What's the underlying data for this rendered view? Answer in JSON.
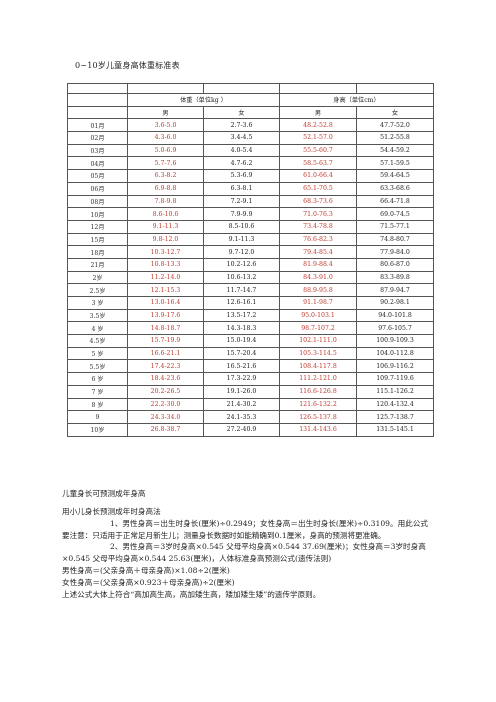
{
  "title": "0~10岁儿童身高体重标准表",
  "table": {
    "group_headers": [
      "体重（单位kg ）",
      "身高（单位cm）"
    ],
    "sub_headers": [
      "男",
      "女",
      "男",
      "女"
    ],
    "rows": [
      {
        "age": "01月",
        "wb": "3.6-5.0",
        "wg": "2.7-3.6",
        "hb": "48.2-52.8",
        "hg": "47.7-52.0"
      },
      {
        "age": "02月",
        "wb": "4.3-6.0",
        "wg": "3.4-4.5",
        "hb": "52.1-57.0",
        "hg": "51.2-55.8"
      },
      {
        "age": "03月",
        "wb": "5.0-6.9",
        "wg": "4.0-5.4",
        "hb": "55.5-60.7",
        "hg": "54.4-59.2"
      },
      {
        "age": "04月",
        "wb": "5.7-7.6",
        "wg": "4.7-6.2",
        "hb": "58.5-63.7",
        "hg": "57.1-59.5"
      },
      {
        "age": "05月",
        "wb": "6.3-8.2",
        "wg": "5.3-6.9",
        "hb": "61.0-66.4",
        "hg": "59.4-64.5"
      },
      {
        "age": "06月",
        "wb": "6.9-8.8",
        "wg": "6.3-8.1",
        "hb": "65.1-70.5",
        "hg": "63.3-68.6"
      },
      {
        "age": "08月",
        "wb": "7.8-9.8",
        "wg": "7.2-9.1",
        "hb": "68.3-73.6",
        "hg": "66.4-71.8"
      },
      {
        "age": "10月",
        "wb": "8.6-10.6",
        "wg": "7.9-9.9",
        "hb": "71.0-76.3",
        "hg": "69.0-74.5"
      },
      {
        "age": "12月",
        "wb": "9.1-11.3",
        "wg": "8.5-10.6",
        "hb": "73.4-78.8",
        "hg": "71.5-77.1"
      },
      {
        "age": "15月",
        "wb": "9.8-12.0",
        "wg": "9.1-11.3",
        "hb": "76.6-82.3",
        "hg": "74.8-80.7"
      },
      {
        "age": "18月",
        "wb": "10.3-12.7",
        "wg": "9.7-12.0",
        "hb": "79.4-85.4",
        "hg": "77.9-84.0"
      },
      {
        "age": "21月",
        "wb": "10.8-13.3",
        "wg": "10.2-12.6",
        "hb": "81.9-88.4",
        "hg": "80.6-87.0"
      },
      {
        "age": "2岁",
        "wb": "11.2-14.0",
        "wg": "10.6-13.2",
        "hb": "84.3-91.0",
        "hg": "83.3-89.8"
      },
      {
        "age": "2.5岁",
        "wb": "12.1-15.3",
        "wg": "11.7-14.7",
        "hb": "88.9-95.8",
        "hg": "87.9-94.7"
      },
      {
        "age": "3 岁",
        "wb": "13.0-16.4",
        "wg": "12.6-16.1",
        "hb": "91.1-98.7",
        "hg": "90.2-98.1"
      },
      {
        "age": "3.5岁",
        "wb": "13.9-17.6",
        "wg": "13.5-17.2",
        "hb": "95.0-103.1",
        "hg": "94.0-101.8"
      },
      {
        "age": "4 岁",
        "wb": "14.8-18.7",
        "wg": "14.3-18.3",
        "hb": "98.7-107.2",
        "hg": "97.6-105.7"
      },
      {
        "age": "4.5岁",
        "wb": "15.7-19.9",
        "wg": "15.0-19.4",
        "hb": "102.1-111.0",
        "hg": "100.9-109.3"
      },
      {
        "age": "5 岁",
        "wb": "16.6-21.1",
        "wg": "15.7-20.4",
        "hb": "105.3-114.5",
        "hg": "104.0-112.8"
      },
      {
        "age": "5.5岁",
        "wb": "17.4-22.3",
        "wg": "16.5-21.6",
        "hb": "108.4-117.8",
        "hg": "106.9-116.2"
      },
      {
        "age": "6 岁",
        "wb": "18.4-23.6",
        "wg": "17.3-22.9",
        "hb": "111.2-121.0",
        "hg": "109.7-119.6"
      },
      {
        "age": "7 岁",
        "wb": "20.2-26.5",
        "wg": "19.1-26.0",
        "hb": "116.6-126.8",
        "hg": "115.1-126.2"
      },
      {
        "age": "8 岁",
        "wb": "22.2-30.0",
        "wg": "21.4-30.2",
        "hb": "121.6-132.2",
        "hg": "120.4-132.4"
      },
      {
        "age": "9",
        "wb": "24.3-34.0",
        "wg": "24.1-35.3",
        "hb": "126.5-137.8",
        "hg": "125.7-138.7"
      },
      {
        "age": "10岁",
        "wb": "26.8-38.7",
        "wg": "27.2-40.9",
        "hb": "131.4-143.6",
        "hg": "131.5-145.1"
      }
    ]
  },
  "section_title": "儿童身长可预测成年身高",
  "paragraphs": [
    "用小儿身长预测成年时身高法",
    "1、男性身高＝出生时身长(厘米)÷0.2949；女性身高＝出生时身长(厘米)÷0.3109。用此公式要注意：只适用于正常足月新生儿；测量身长数据时如能精确到0.1厘米，身高的预测将更准确。",
    "2、男性身高＝3岁时身高×0.545 父母平均身高×0.544 37.69(厘米)；女性身高＝3岁时身高×0.545 父母平均身高×0.544 25.63(厘米)，人体标准身高预测公式(遗传法则)",
    "男性身高＝(父亲身高＋母亲身高)×1.08÷2(厘米)",
    "女性身高＝(父亲身高×0.923＋母亲身高)÷2(厘米)",
    "上述公式大体上符合“高加高生高，高加矮生高，矮加矮生矮”的遗传学原则。"
  ]
}
